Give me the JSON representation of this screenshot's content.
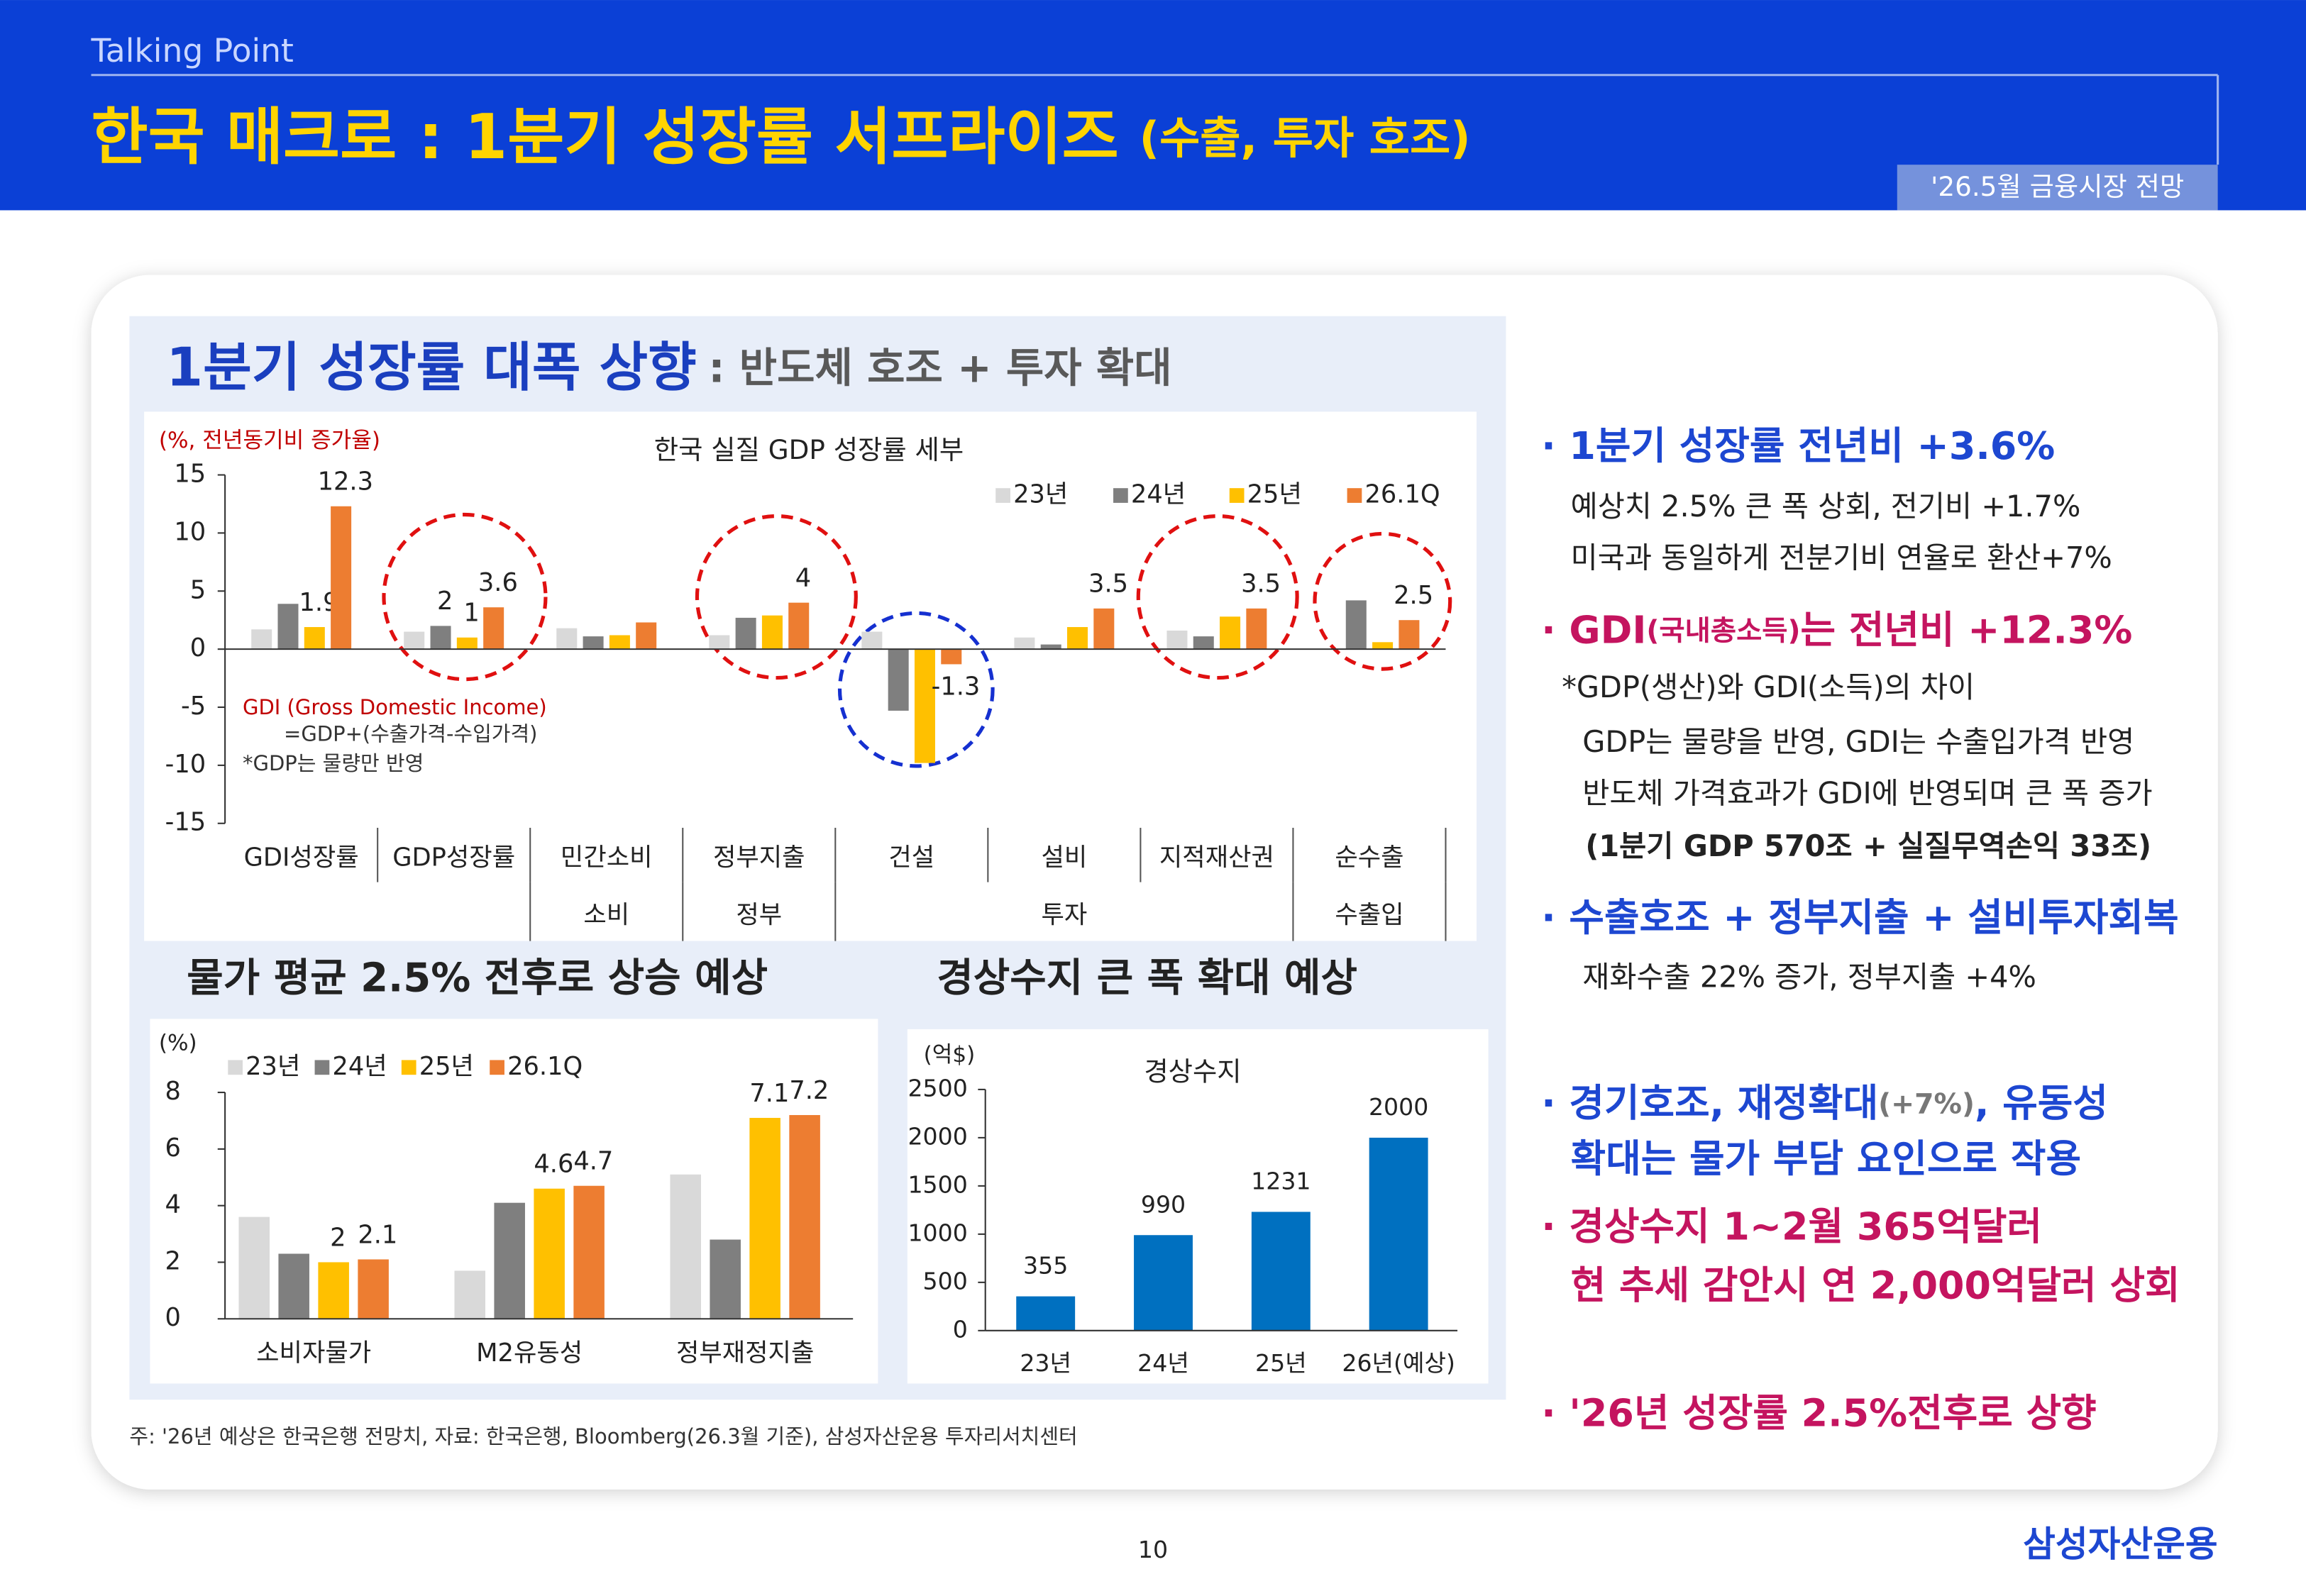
{
  "header": {
    "label": "Talking Point",
    "title": "한국 매크로 : 1분기 성장률 서프라이즈",
    "title_note": "(수출, 투자 호조)",
    "tag": "'26.5월 금융시장 전망"
  },
  "panel": {
    "title": "1분기 성장률 대폭 상향",
    "subtitle": ": 반도체 호조 + 투자 확대"
  },
  "chart_data": [
    {
      "type": "bar",
      "title": "한국 실질 GDP 성장률 세부",
      "unit_label": "(%, 전년동기비 증가율)",
      "categories": [
        "GDI성장률",
        "GDP성장률",
        "민간소비",
        "정부지출",
        "건설",
        "설비",
        "지적재산권",
        "순수출"
      ],
      "group_labels": [
        null,
        null,
        "소비",
        "정부",
        null,
        "투자",
        null,
        "수출입"
      ],
      "series": [
        {
          "name": "23년",
          "color": "#d9d9d9",
          "values": [
            1.7,
            1.5,
            1.8,
            1.2,
            1.5,
            1.0,
            1.6,
            0
          ]
        },
        {
          "name": "24년",
          "color": "#7f7f7f",
          "values": [
            3.9,
            2.0,
            1.1,
            2.7,
            -5.3,
            0.4,
            1.1,
            4.2
          ],
          "value_labels": [
            null,
            "2",
            null,
            null,
            null,
            null,
            null,
            null
          ]
        },
        {
          "name": "25년",
          "color": "#ffc000",
          "values": [
            1.9,
            1.0,
            1.2,
            2.9,
            -9.8,
            1.9,
            2.8,
            0.6
          ],
          "value_labels": [
            "1.9",
            "1",
            null,
            null,
            null,
            null,
            null,
            null
          ]
        },
        {
          "name": "26.1Q",
          "color": "#ed7d31",
          "values": [
            12.3,
            3.6,
            2.3,
            4,
            -1.3,
            3.5,
            3.5,
            2.5
          ],
          "value_labels": [
            "12.3",
            "3.6",
            null,
            "4",
            "-1.3",
            "3.5",
            "3.5",
            "2.5"
          ]
        }
      ],
      "ylim": [
        -15,
        15
      ],
      "yticks": [
        -15,
        -10,
        -5,
        0,
        5,
        10,
        15
      ],
      "legend": "top-right",
      "annotations": [
        "GDI (Gross Domestic Income)",
        "=GDP+(수출가격-수입가격)",
        "*GDP는 물량만 반영"
      ]
    },
    {
      "type": "bar",
      "unit_label": "(%)",
      "categories": [
        "소비자물가",
        "M2유동성",
        "정부재정지출"
      ],
      "series": [
        {
          "name": "23년",
          "color": "#d9d9d9",
          "values": [
            3.6,
            1.7,
            5.1
          ]
        },
        {
          "name": "24년",
          "color": "#7f7f7f",
          "values": [
            2.3,
            4.1,
            2.8
          ]
        },
        {
          "name": "25년",
          "color": "#ffc000",
          "values": [
            2,
            4.6,
            7.1
          ],
          "value_labels": [
            "2",
            "4.6",
            "7.1"
          ]
        },
        {
          "name": "26.1Q",
          "color": "#ed7d31",
          "values": [
            2.1,
            4.7,
            7.2
          ],
          "value_labels": [
            "2.1",
            "4.7",
            "7.2"
          ]
        }
      ],
      "ylim": [
        0,
        8
      ],
      "yticks": [
        0,
        2,
        4,
        6,
        8
      ],
      "legend": "top-left"
    },
    {
      "type": "bar",
      "title": "경상수지",
      "unit_label": "(억$)",
      "categories": [
        "23년",
        "24년",
        "25년",
        "26년(예상)"
      ],
      "values": [
        355,
        990,
        1231,
        2000
      ],
      "color": "#0070c0",
      "ylim": [
        0,
        2500
      ],
      "yticks": [
        0,
        500,
        1000,
        1500,
        2000,
        2500
      ]
    }
  ],
  "headings": [
    "물가 평균 2.5% 전후로 상승 예상",
    "경상수지 큰 폭 확대 예상"
  ],
  "footnote": "주: '26년 예상은 한국은행 전망치, 자료: 한국은행, Bloomberg(26.3월 기준), 삼성자산운용 투자리서치센터",
  "bullets": [
    {
      "heading": [
        [
          "· 1분기 성장률 전년비 +3.6%"
        ]
      ],
      "details": [
        "예상치 2.5% 큰 폭 상회, 전기비 +1.7%",
        "미국과 동일하게 전분기비 연율로 환산+7%"
      ]
    },
    {
      "heading": [
        [
          "· GDI",
          "(국내총소득)",
          "는 전년비 +12.3%"
        ]
      ],
      "details": [
        "*GDP(생산)와 GDI(소득)의 차이",
        "GDP는 물량을 반영, GDI는 수출입가격 반영",
        "반도체 가격효과가 GDI에 반영되며 큰 폭 증가",
        "(1분기 GDP 570조 + 실질무역손익 33조)"
      ]
    },
    {
      "heading": [
        [
          "· 수출호조 + 정부지출 + 설비투자회복"
        ]
      ],
      "details": [
        "재화수출 22% 증가, 정부지출 +4%"
      ]
    },
    {
      "heading": [
        [
          "· 경기호조, 재정확대",
          "(+7%)",
          ", 유동성"
        ],
        [
          "확대는 물가 부담 요인으로 작용"
        ]
      ]
    },
    {
      "heading": [
        [
          "· 경상수지 1~2월 365억달러"
        ],
        [
          "현 추세 감안시 연 2,000억달러 상회"
        ]
      ]
    },
    {
      "heading": [
        [
          "· '26년 성장률 2.5%전후로 상향"
        ]
      ]
    }
  ],
  "page_number": "10",
  "brand": "삼성자산운용"
}
